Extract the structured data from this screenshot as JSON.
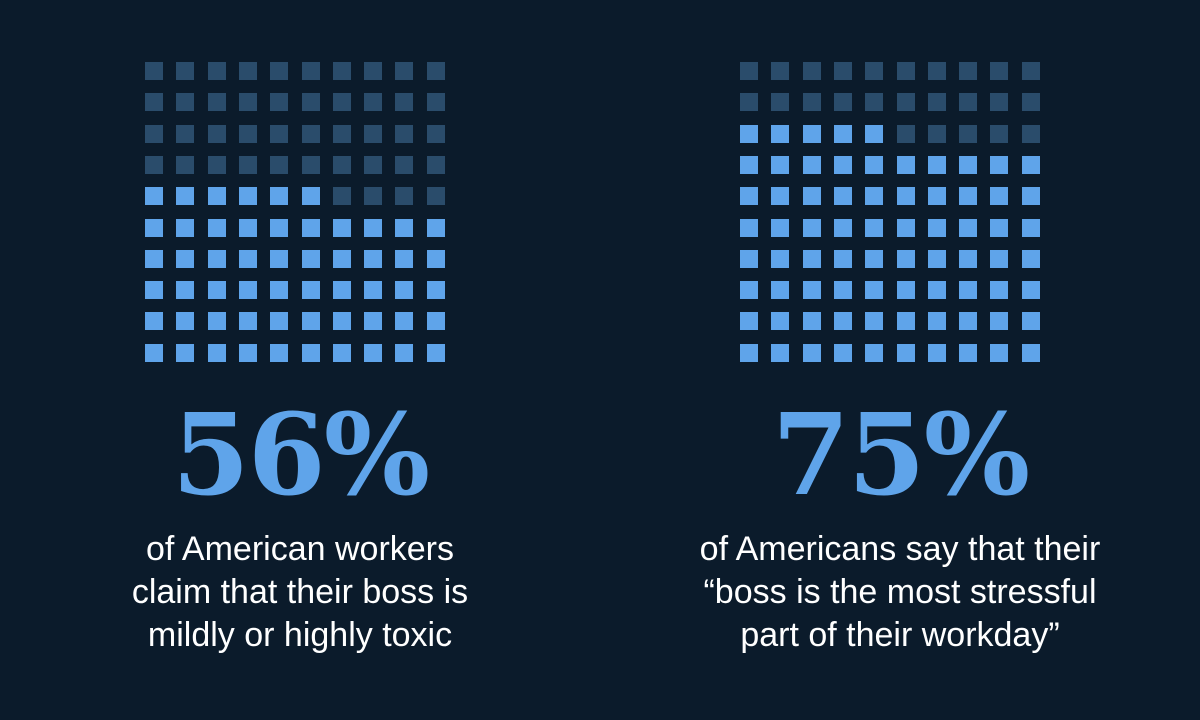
{
  "colors": {
    "background": "#0b1b2b",
    "filled": "#5fa4ea",
    "empty": "#2a4c6b",
    "text": "#ffffff"
  },
  "chart_data": [
    {
      "type": "waffle",
      "total": 100,
      "filled": 56,
      "grid": [
        10,
        10
      ],
      "fill_from": "bottom",
      "stat_label": "56%",
      "caption_lines": [
        "of American workers",
        "claim that their boss is",
        "mildly or highly toxic"
      ]
    },
    {
      "type": "waffle",
      "total": 100,
      "filled": 75,
      "grid": [
        10,
        10
      ],
      "fill_from": "bottom",
      "stat_label": "75%",
      "caption_lines": [
        "of Americans say that their",
        "“boss is the most stressful",
        "part of their workday”"
      ]
    }
  ]
}
